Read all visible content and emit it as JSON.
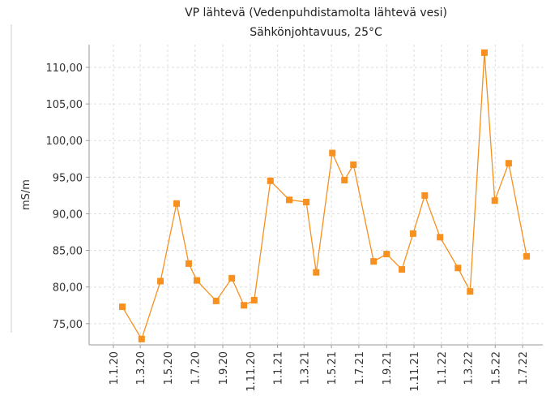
{
  "chart_data": {
    "type": "line",
    "title": "VP lähtevä (Vedenpuhdistamolta lähtevä vesi)",
    "subtitle": "Sähkönjohtavuus, 25°C",
    "y_label": "mS/m",
    "x": [
      "2020-01-21",
      "2020-03-04",
      "2020-04-15",
      "2020-05-21",
      "2020-06-17",
      "2020-07-05",
      "2020-08-17",
      "2020-09-21",
      "2020-10-18",
      "2020-11-10",
      "2020-12-16",
      "2021-01-27",
      "2021-03-06",
      "2021-03-28",
      "2021-05-03",
      "2021-05-30",
      "2021-06-19",
      "2021-08-03",
      "2021-09-01",
      "2021-10-05",
      "2021-10-30",
      "2021-11-25",
      "2021-12-29",
      "2022-02-07",
      "2022-03-06",
      "2022-04-07",
      "2022-04-30",
      "2022-05-31",
      "2022-07-10"
    ],
    "series": [
      {
        "name": "VP lähtevä",
        "color": "#f7901e",
        "values": [
          77.3,
          72.9,
          80.8,
          91.4,
          83.2,
          80.9,
          78.1,
          81.2,
          77.5,
          78.2,
          94.5,
          91.9,
          91.6,
          82.0,
          98.3,
          94.6,
          96.7,
          83.5,
          84.5,
          82.4,
          87.3,
          92.5,
          86.8,
          82.6,
          79.4,
          112.0,
          91.8,
          96.9,
          84.2
        ]
      }
    ],
    "xlim": [
      "2019-11-08",
      "2022-08-15"
    ],
    "xticks": [
      {
        "value": "2020-01-01",
        "label": "1.1.20"
      },
      {
        "value": "2020-03-01",
        "label": "1.3.20"
      },
      {
        "value": "2020-05-01",
        "label": "1.5.20"
      },
      {
        "value": "2020-07-01",
        "label": "1.7.20"
      },
      {
        "value": "2020-09-01",
        "label": "1.9.20"
      },
      {
        "value": "2020-11-01",
        "label": "1.11.20"
      },
      {
        "value": "2021-01-01",
        "label": "1.1.21"
      },
      {
        "value": "2021-03-01",
        "label": "1.3.21"
      },
      {
        "value": "2021-05-01",
        "label": "1.5.21"
      },
      {
        "value": "2021-07-01",
        "label": "1.7.21"
      },
      {
        "value": "2021-09-01",
        "label": "1.9.21"
      },
      {
        "value": "2021-11-01",
        "label": "1.11.21"
      },
      {
        "value": "2022-01-01",
        "label": "1.1.22"
      },
      {
        "value": "2022-03-01",
        "label": "1.3.22"
      },
      {
        "value": "2022-05-01",
        "label": "1.5.22"
      },
      {
        "value": "2022-07-01",
        "label": "1.7.22"
      }
    ],
    "ylim": [
      72.1,
      113.1
    ],
    "yticks": [
      {
        "value": 75,
        "label": "75,00"
      },
      {
        "value": 80,
        "label": "80,00"
      },
      {
        "value": 85,
        "label": "85,00"
      },
      {
        "value": 90,
        "label": "90,00"
      },
      {
        "value": 95,
        "label": "95,00"
      },
      {
        "value": 100,
        "label": "100,00"
      },
      {
        "value": 105,
        "label": "105,00"
      },
      {
        "value": 110,
        "label": "110,00"
      }
    ],
    "grid": true
  }
}
